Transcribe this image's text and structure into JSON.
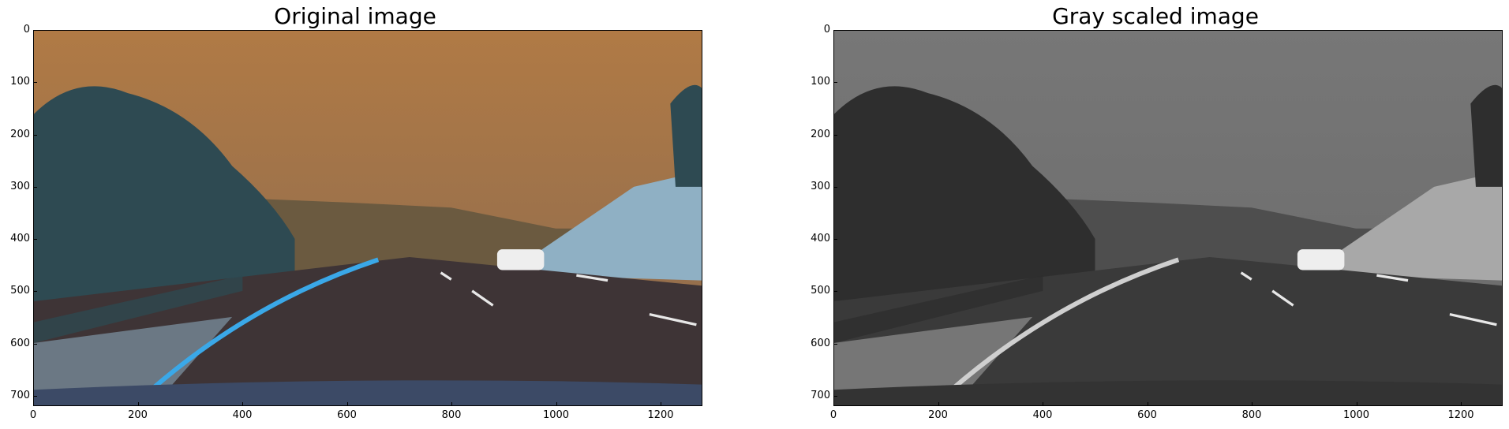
{
  "panels": [
    {
      "title": "Original image",
      "variant": "color",
      "x_ticks": [
        "0",
        "200",
        "400",
        "600",
        "800",
        "1000",
        "1200"
      ],
      "y_ticks": [
        "0",
        "100",
        "200",
        "300",
        "400",
        "500",
        "600",
        "700"
      ],
      "x_limits": [
        0,
        1280
      ],
      "y_limits": [
        720,
        0
      ],
      "colors": {
        "sky_top": "#b07a45",
        "sky_bottom": "#8a6a50",
        "hills": "#6b5a40",
        "trees": "#2e4a52",
        "road": "#3e3436",
        "lane_marker": "#3aa8e8",
        "hillside": "#8fb0c4"
      }
    },
    {
      "title": "Gray scaled image",
      "variant": "gray",
      "x_ticks": [
        "0",
        "200",
        "400",
        "600",
        "800",
        "1000",
        "1200"
      ],
      "y_ticks": [
        "0",
        "100",
        "200",
        "300",
        "400",
        "500",
        "600",
        "700"
      ],
      "x_limits": [
        0,
        1280
      ],
      "y_limits": [
        720,
        0
      ],
      "colors": {
        "sky_top": "#777777",
        "sky_bottom": "#6a6a6a",
        "hills": "#4e4e4e",
        "trees": "#2e2e2e",
        "road": "#3a3a3a",
        "lane_marker": "#cfcfcf",
        "hillside": "#a8a8a8"
      }
    }
  ]
}
